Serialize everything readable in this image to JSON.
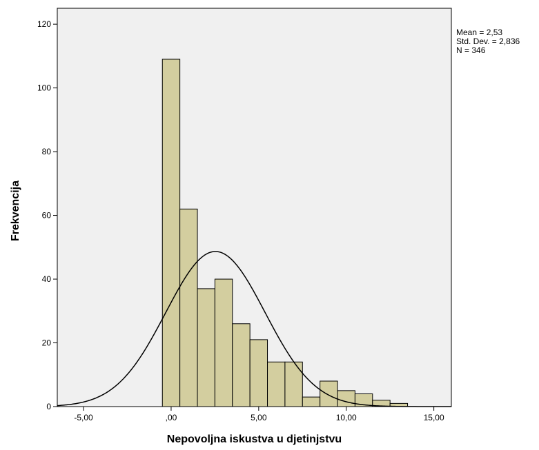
{
  "chart_data": {
    "type": "bar",
    "subtype": "histogram",
    "xlabel": "Nepovoljna iskustva u djetinjstvu",
    "ylabel": "Frekvencija",
    "xlim": [
      -6.5,
      16.0
    ],
    "ylim": [
      0,
      125
    ],
    "x_ticks": [
      {
        "value": -5,
        "label": "-5,00"
      },
      {
        "value": 0,
        "label": ",00"
      },
      {
        "value": 5,
        "label": "5,00"
      },
      {
        "value": 10,
        "label": "10,00"
      },
      {
        "value": 15,
        "label": "15,00"
      }
    ],
    "y_ticks": [
      {
        "value": 0,
        "label": "0"
      },
      {
        "value": 20,
        "label": "20"
      },
      {
        "value": 40,
        "label": "40"
      },
      {
        "value": 60,
        "label": "60"
      },
      {
        "value": 80,
        "label": "80"
      },
      {
        "value": 100,
        "label": "100"
      },
      {
        "value": 120,
        "label": "120"
      }
    ],
    "bin_width": 1,
    "bins": [
      {
        "start": -0.5,
        "end": 0.5,
        "value": 109
      },
      {
        "start": 0.5,
        "end": 1.5,
        "value": 62
      },
      {
        "start": 1.5,
        "end": 2.5,
        "value": 37
      },
      {
        "start": 2.5,
        "end": 3.5,
        "value": 40
      },
      {
        "start": 3.5,
        "end": 4.5,
        "value": 26
      },
      {
        "start": 4.5,
        "end": 5.5,
        "value": 21
      },
      {
        "start": 5.5,
        "end": 6.5,
        "value": 14
      },
      {
        "start": 6.5,
        "end": 7.5,
        "value": 14
      },
      {
        "start": 7.5,
        "end": 8.5,
        "value": 3
      },
      {
        "start": 8.5,
        "end": 9.5,
        "value": 8
      },
      {
        "start": 9.5,
        "end": 10.5,
        "value": 5
      },
      {
        "start": 10.5,
        "end": 11.5,
        "value": 4
      },
      {
        "start": 11.5,
        "end": 12.5,
        "value": 2
      },
      {
        "start": 12.5,
        "end": 13.5,
        "value": 1
      }
    ],
    "normal_curve": {
      "mean": 2.53,
      "std_dev": 2.836,
      "n": 346
    },
    "stats": {
      "mean_label": "Mean = 2,53",
      "std_dev_label": "Std. Dev. = 2,836",
      "n_label": "N = 346"
    },
    "grid": false,
    "colors": {
      "bar_fill": "#d3ce9f",
      "bar_stroke": "#000000",
      "plot_background": "#f0f0f0",
      "page_background": "#ffffff",
      "curve": "#000000"
    }
  }
}
